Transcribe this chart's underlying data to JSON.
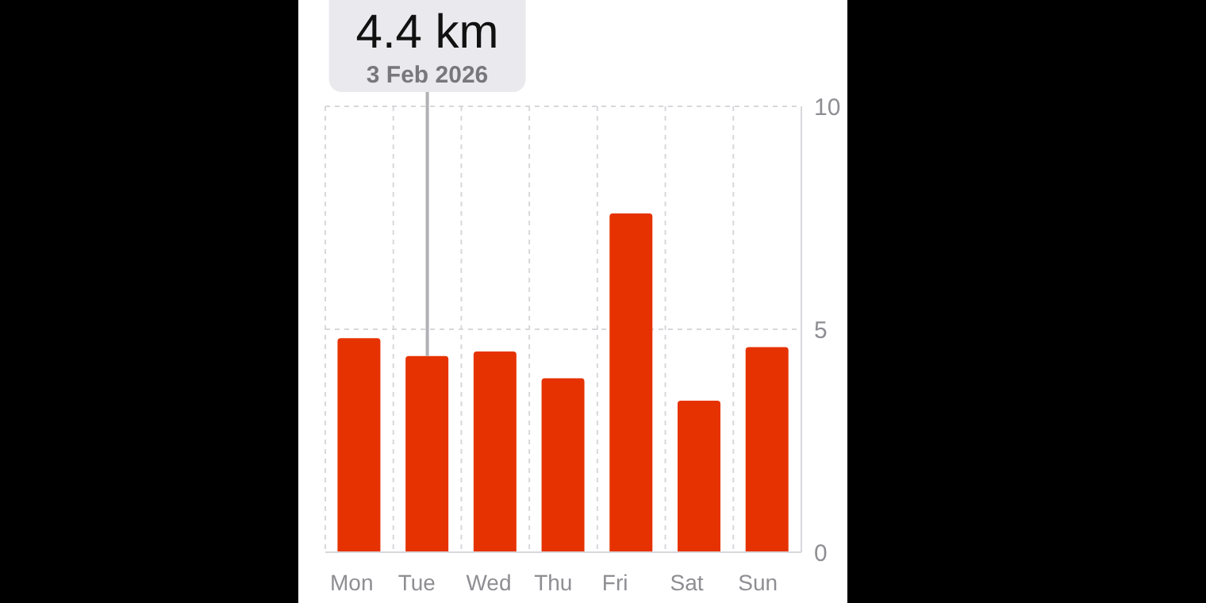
{
  "chart_data": {
    "type": "bar",
    "categories": [
      "Mon",
      "Tue",
      "Wed",
      "Thu",
      "Fri",
      "Sat",
      "Sun"
    ],
    "values": [
      4.8,
      4.4,
      4.5,
      3.9,
      7.6,
      3.4,
      4.6
    ],
    "color": "#e63200",
    "ylim": [
      0,
      10
    ],
    "yticks": [
      0,
      5,
      10
    ],
    "grid": true,
    "ref_lines": [
      {
        "axis": "x",
        "value": "Tue",
        "color": "#b0b0b5"
      }
    ],
    "annotations": [
      "4.4 km",
      "3 Feb 2026"
    ]
  }
}
